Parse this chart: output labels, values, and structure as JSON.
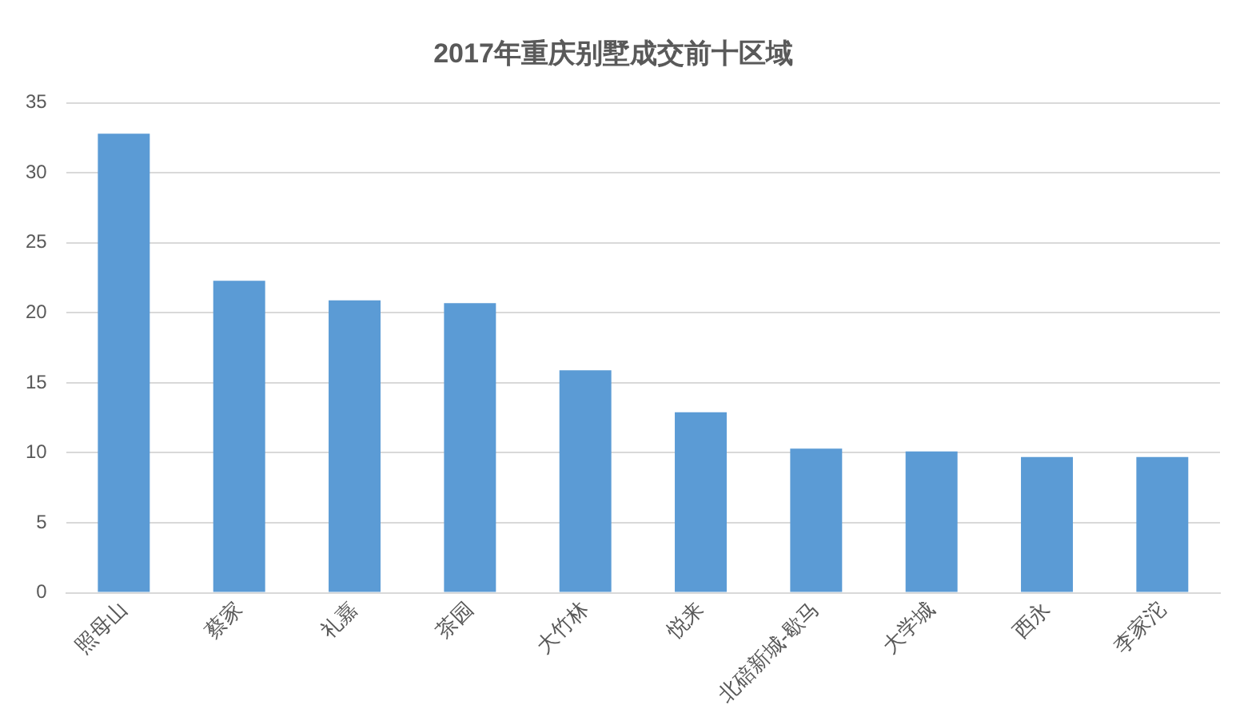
{
  "chart_data": {
    "type": "bar",
    "title": "2017年重庆别墅成交前十区域",
    "categories": [
      "照母山",
      "蔡家",
      "礼嘉",
      "茶园",
      "大竹林",
      "悦来",
      "北碚新城-歇马",
      "大学城",
      "西永",
      "李家沱"
    ],
    "values": [
      32.8,
      22.3,
      20.9,
      20.7,
      15.9,
      12.9,
      10.3,
      10.1,
      9.7,
      9.7
    ],
    "color": "#5b9bd5",
    "ylim": [
      0,
      35
    ],
    "yticks": [
      0,
      5,
      10,
      15,
      20,
      25,
      30,
      35
    ],
    "grid": "y",
    "legend": false
  }
}
